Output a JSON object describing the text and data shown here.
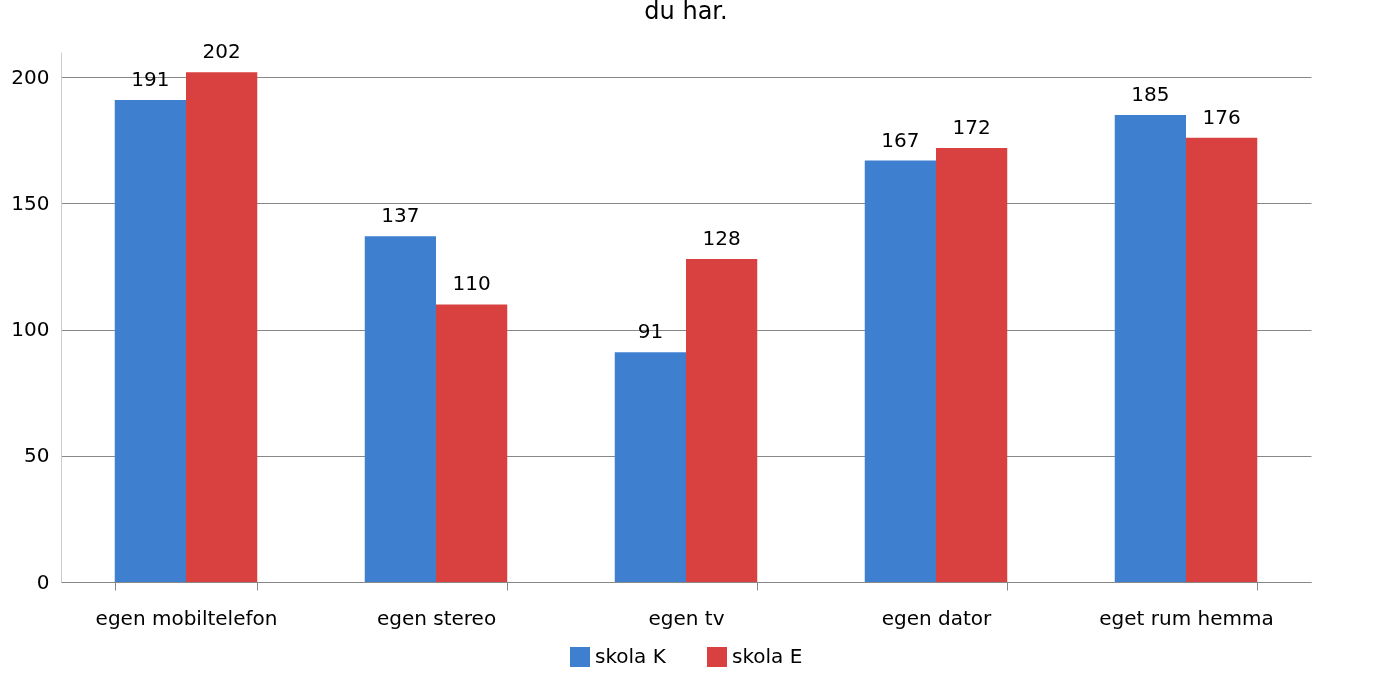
{
  "chart_data": {
    "type": "bar",
    "title": "du har.",
    "categories": [
      "egen mobiltelefon",
      "egen stereo",
      "egen tv",
      "egen dator",
      "eget rum hemma"
    ],
    "series": [
      {
        "name": "skola K",
        "color": "#3f7fd0",
        "values": [
          191,
          137,
          91,
          167,
          185
        ]
      },
      {
        "name": "skola E",
        "color": "#d94040",
        "values": [
          202,
          110,
          128,
          172,
          176
        ]
      }
    ],
    "ylim": [
      0,
      210
    ],
    "yticks": [
      0,
      50,
      100,
      150,
      200
    ],
    "grid": "y",
    "legend": "bottom",
    "data_labels": true
  }
}
